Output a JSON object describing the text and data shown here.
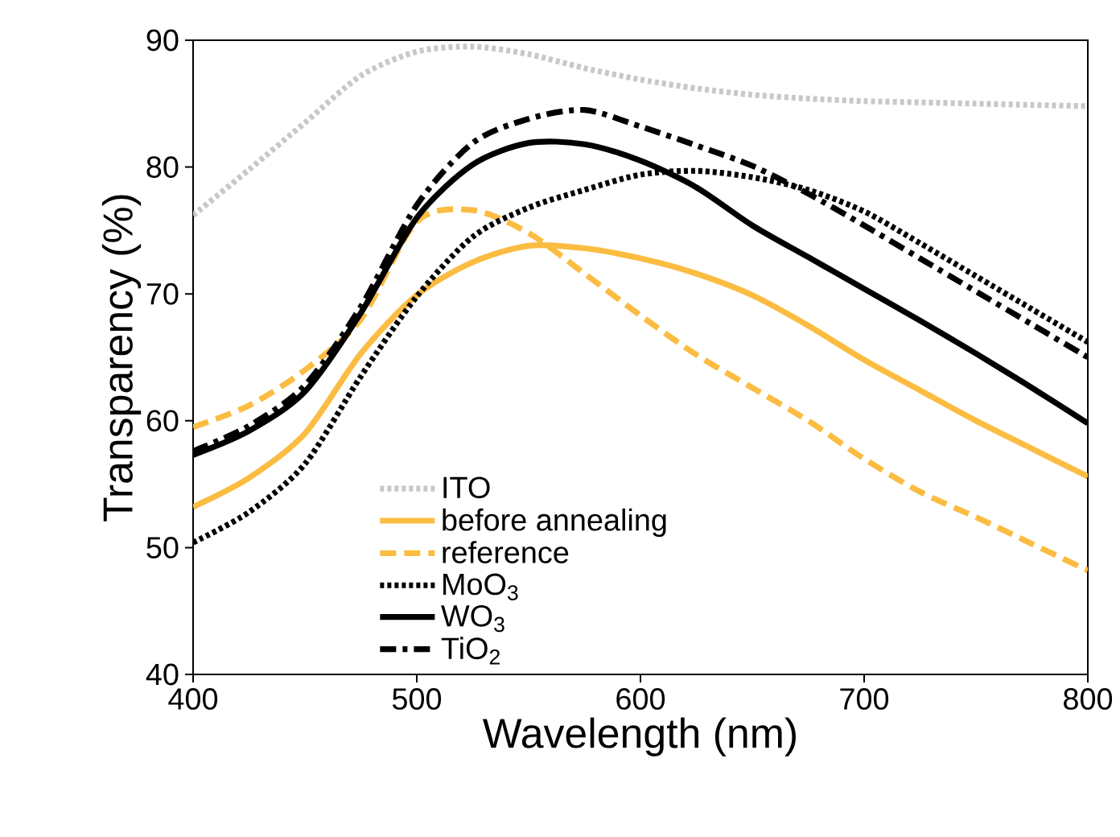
{
  "chart_data": {
    "type": "line",
    "xlabel": "Wavelength (nm)",
    "ylabel": "Transparency (%)",
    "x": [
      400,
      425,
      450,
      475,
      500,
      525,
      550,
      575,
      600,
      625,
      650,
      675,
      700,
      725,
      750,
      775,
      800
    ],
    "xlim": [
      400,
      800
    ],
    "xticks": [
      400,
      500,
      600,
      700,
      800
    ],
    "ylim": [
      40,
      90
    ],
    "yticks": [
      40,
      50,
      60,
      70,
      80,
      90
    ],
    "legend": "bottom left",
    "series": [
      {
        "name": "ITO",
        "color": "#c8c8c8",
        "line_style": "dotted",
        "values": [
          76.2,
          79.8,
          83.5,
          87.2,
          89.1,
          89.5,
          88.9,
          87.8,
          86.9,
          86.2,
          85.7,
          85.4,
          85.2,
          85.1,
          85.0,
          84.9,
          84.8
        ]
      },
      {
        "name": "before annealing",
        "color": "#fbbc42",
        "line_style": "solid",
        "values": [
          53.2,
          55.5,
          59.0,
          65.3,
          69.9,
          72.5,
          73.8,
          73.6,
          72.8,
          71.6,
          69.9,
          67.5,
          64.8,
          62.4,
          60.0,
          57.8,
          55.6
        ]
      },
      {
        "name": "reference",
        "color": "#fbbc42",
        "line_style": "dashed",
        "values": [
          59.5,
          61.2,
          64.0,
          68.0,
          75.7,
          76.6,
          74.8,
          71.6,
          68.3,
          65.2,
          62.6,
          60.0,
          57.0,
          54.4,
          52.4,
          50.3,
          48.2
        ]
      },
      {
        "name": "MoO$_{3}$",
        "color": "#000000",
        "line_style": "dotted",
        "values": [
          50.4,
          52.8,
          56.6,
          63.5,
          69.8,
          74.5,
          76.8,
          78.2,
          79.4,
          79.7,
          79.2,
          78.2,
          76.5,
          74.0,
          71.4,
          68.8,
          66.2
        ]
      },
      {
        "name": "WO$_{3}$",
        "color": "#000000",
        "line_style": "solid",
        "values": [
          57.3,
          59.2,
          62.3,
          68.5,
          76.0,
          80.2,
          81.9,
          81.8,
          80.5,
          78.4,
          75.4,
          72.9,
          70.4,
          67.9,
          65.3,
          62.6,
          59.8
        ]
      },
      {
        "name": "TiO$_{2}$",
        "color": "#000000",
        "line_style": "dashdot",
        "values": [
          57.6,
          59.6,
          62.8,
          69.0,
          77.0,
          81.9,
          83.8,
          84.5,
          83.2,
          81.7,
          80.1,
          77.9,
          75.4,
          72.8,
          70.2,
          67.6,
          65.0
        ]
      }
    ]
  }
}
